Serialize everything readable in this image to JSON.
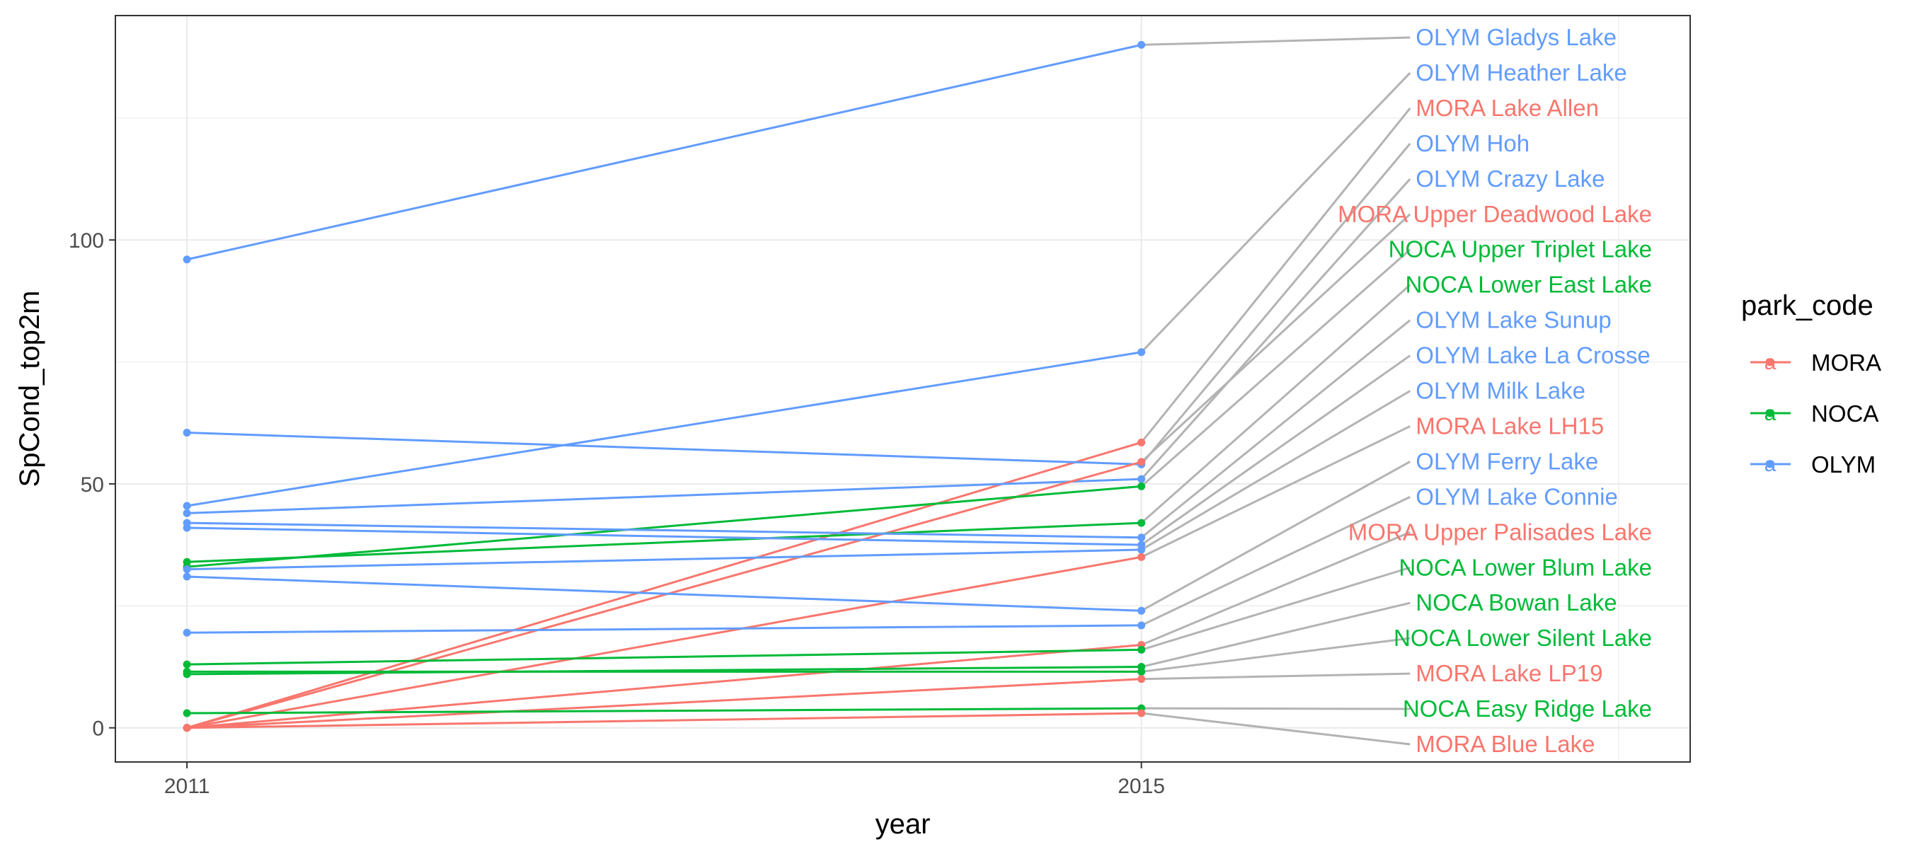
{
  "chart_data": {
    "type": "line",
    "xlabel": "year",
    "ylabel": "SpCond_top2m",
    "x": [
      2011,
      2015
    ],
    "x_ticks": [
      "2011",
      "2015"
    ],
    "y_ticks": [
      "0",
      "50",
      "100"
    ],
    "y_tick_values": [
      0,
      50,
      100
    ],
    "xlim": [
      2010.7,
      2017.3
    ],
    "ylim": [
      -7,
      146
    ],
    "grid": true,
    "theme": "bw",
    "legend": {
      "title": "park_code",
      "placement": "right",
      "entries": [
        {
          "name": "MORA",
          "color": "#F8766D"
        },
        {
          "name": "NOCA",
          "color": "#00BA38"
        },
        {
          "name": "OLYM",
          "color": "#619CFF"
        }
      ]
    },
    "series": [
      {
        "name": "OLYM Gladys Lake",
        "park": "OLYM",
        "values": [
          96,
          140
        ]
      },
      {
        "name": "OLYM Heather Lake",
        "park": "OLYM",
        "values": [
          45.5,
          77
        ]
      },
      {
        "name": "MORA Lake Allen",
        "park": "MORA",
        "values": [
          0,
          58.5
        ]
      },
      {
        "name": "OLYM Hoh",
        "park": "OLYM",
        "values": [
          60.5,
          54
        ]
      },
      {
        "name": "OLYM Crazy Lake",
        "park": "OLYM",
        "values": [
          44,
          51
        ]
      },
      {
        "name": "MORA Upper Deadwood Lake",
        "park": "MORA",
        "values": [
          0,
          54.5
        ]
      },
      {
        "name": "NOCA Upper Triplet Lake",
        "park": "NOCA",
        "values": [
          33,
          49.5
        ]
      },
      {
        "name": "NOCA Lower East Lake",
        "park": "NOCA",
        "values": [
          34,
          42
        ]
      },
      {
        "name": "OLYM Lake Sunup",
        "park": "OLYM",
        "values": [
          42,
          39
        ]
      },
      {
        "name": "OLYM Lake La Crosse",
        "park": "OLYM",
        "values": [
          41,
          37.5
        ]
      },
      {
        "name": "OLYM Milk Lake",
        "park": "OLYM",
        "values": [
          32.5,
          36.5
        ]
      },
      {
        "name": "MORA Lake LH15",
        "park": "MORA",
        "values": [
          0,
          35
        ]
      },
      {
        "name": "OLYM Ferry Lake",
        "park": "OLYM",
        "values": [
          31,
          24
        ]
      },
      {
        "name": "OLYM Lake Connie",
        "park": "OLYM",
        "values": [
          19.5,
          21
        ]
      },
      {
        "name": "MORA Upper Palisades Lake",
        "park": "MORA",
        "values": [
          0,
          17
        ]
      },
      {
        "name": "NOCA Lower Blum Lake",
        "park": "NOCA",
        "values": [
          13,
          16
        ]
      },
      {
        "name": "NOCA Bowan Lake",
        "park": "NOCA",
        "values": [
          11,
          12.5
        ]
      },
      {
        "name": "NOCA Lower Silent Lake",
        "park": "NOCA",
        "values": [
          11.5,
          11.5
        ]
      },
      {
        "name": "MORA Lake LP19",
        "park": "MORA",
        "values": [
          0,
          10
        ]
      },
      {
        "name": "NOCA Easy Ridge Lake",
        "park": "NOCA",
        "values": [
          3,
          4
        ]
      },
      {
        "name": "MORA Blue Lake",
        "park": "MORA",
        "values": [
          0,
          3
        ]
      }
    ],
    "end_labels": [
      {
        "text": "OLYM Gladys Lake",
        "park": "OLYM",
        "anchor": "start"
      },
      {
        "text": "OLYM Heather Lake",
        "park": "OLYM",
        "anchor": "start"
      },
      {
        "text": "MORA Lake Allen",
        "park": "MORA",
        "anchor": "start"
      },
      {
        "text": "OLYM Hoh",
        "park": "OLYM",
        "anchor": "start"
      },
      {
        "text": "OLYM Crazy Lake",
        "park": "OLYM",
        "anchor": "start"
      },
      {
        "text": "MORA Upper Deadwood Lake",
        "park": "MORA",
        "anchor": "end"
      },
      {
        "text": "NOCA Upper Triplet Lake",
        "park": "NOCA",
        "anchor": "end"
      },
      {
        "text": "NOCA Lower East Lake",
        "park": "NOCA",
        "anchor": "end"
      },
      {
        "text": "OLYM Lake Sunup",
        "park": "OLYM",
        "anchor": "start"
      },
      {
        "text": "OLYM Lake La Crosse",
        "park": "OLYM",
        "anchor": "start"
      },
      {
        "text": "OLYM Milk Lake",
        "park": "OLYM",
        "anchor": "start"
      },
      {
        "text": "MORA Lake LH15",
        "park": "MORA",
        "anchor": "start"
      },
      {
        "text": "OLYM Ferry Lake",
        "park": "OLYM",
        "anchor": "start"
      },
      {
        "text": "OLYM Lake Connie",
        "park": "OLYM",
        "anchor": "start"
      },
      {
        "text": "MORA Upper Palisades Lake",
        "park": "MORA",
        "anchor": "end"
      },
      {
        "text": "NOCA Lower Blum Lake",
        "park": "NOCA",
        "anchor": "end"
      },
      {
        "text": "NOCA Bowan Lake",
        "park": "NOCA",
        "anchor": "start"
      },
      {
        "text": "NOCA Lower Silent Lake",
        "park": "NOCA",
        "anchor": "end"
      },
      {
        "text": "MORA Lake LP19",
        "park": "MORA",
        "anchor": "start"
      },
      {
        "text": "NOCA Easy Ridge Lake",
        "park": "NOCA",
        "anchor": "end"
      },
      {
        "text": "MORA Blue Lake",
        "park": "MORA",
        "anchor": "start"
      }
    ]
  }
}
